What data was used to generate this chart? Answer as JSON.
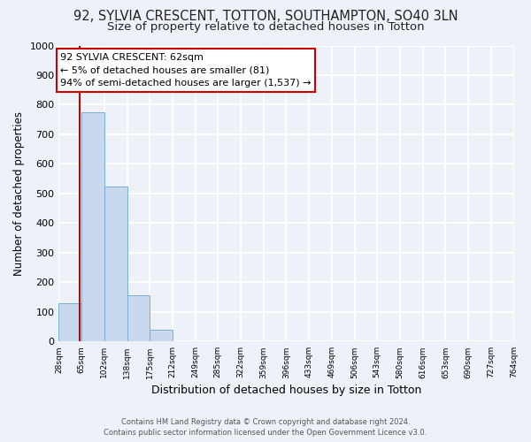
{
  "title": "92, SYLVIA CRESCENT, TOTTON, SOUTHAMPTON, SO40 3LN",
  "subtitle": "Size of property relative to detached houses in Totton",
  "xlabel": "Distribution of detached houses by size in Totton",
  "ylabel": "Number of detached properties",
  "bar_values": [
    130,
    775,
    525,
    155,
    40,
    0,
    0,
    0,
    0,
    0,
    0,
    0,
    0,
    0,
    0,
    0,
    0,
    0,
    0,
    0
  ],
  "bin_labels": [
    "28sqm",
    "65sqm",
    "102sqm",
    "138sqm",
    "175sqm",
    "212sqm",
    "249sqm",
    "285sqm",
    "322sqm",
    "359sqm",
    "396sqm",
    "433sqm",
    "469sqm",
    "506sqm",
    "543sqm",
    "580sqm",
    "616sqm",
    "653sqm",
    "690sqm",
    "727sqm",
    "764sqm"
  ],
  "bar_color": "#c8d9ee",
  "bar_edge_color": "#7aafd4",
  "highlight_line_color": "#cc0000",
  "annotation_title": "92 SYLVIA CRESCENT: 62sqm",
  "annotation_line1": "← 5% of detached houses are smaller (81)",
  "annotation_line2": "94% of semi-detached houses are larger (1,537) →",
  "annotation_box_color": "#ffffff",
  "annotation_box_edge": "#cc0000",
  "ylim": [
    0,
    1000
  ],
  "yticks": [
    0,
    100,
    200,
    300,
    400,
    500,
    600,
    700,
    800,
    900,
    1000
  ],
  "footer1": "Contains HM Land Registry data © Crown copyright and database right 2024.",
  "footer2": "Contains public sector information licensed under the Open Government Licence v3.0.",
  "background_color": "#eef2f8",
  "plot_background": "#eef2f8",
  "grid_color": "#ffffff",
  "title_fontsize": 10.5,
  "subtitle_fontsize": 9.5
}
